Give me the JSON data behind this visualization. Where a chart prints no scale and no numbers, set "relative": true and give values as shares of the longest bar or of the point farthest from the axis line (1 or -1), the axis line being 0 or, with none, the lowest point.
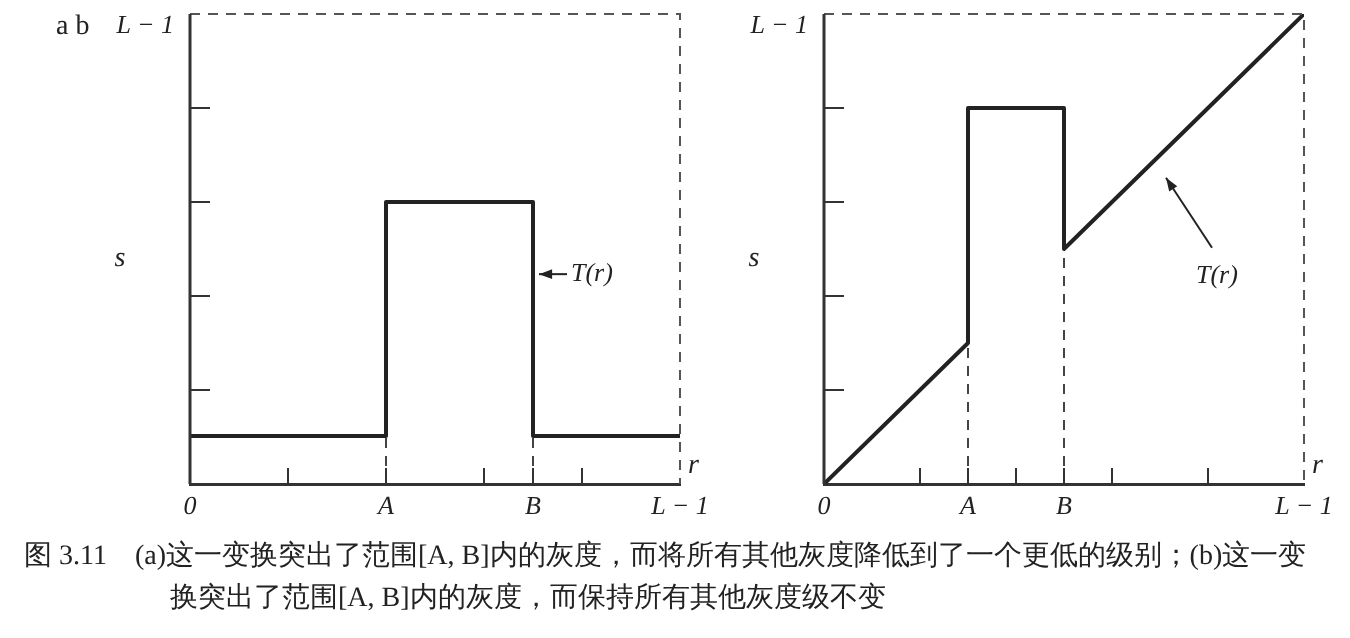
{
  "chart_data": [
    {
      "type": "line",
      "relative": true,
      "xlabel": "r",
      "ylabel": "s",
      "legend": false,
      "marker": "none",
      "categories": [
        "0",
        null,
        null,
        null,
        "A",
        null,
        null,
        "B",
        null,
        null,
        "L − 1"
      ],
      "series": [
        {
          "color": "#222222",
          "line_style": "solid",
          "x": [
            "0",
            "A",
            "A",
            "B",
            "B",
            "L − 1"
          ],
          "values": [
            0.17,
            0.17,
            1,
            1,
            0.17,
            0.17
          ]
        },
        {
          "color": "#444444",
          "line_style": "dashed",
          "x": [
            "A",
            "A"
          ],
          "values": [
            0,
            0.17
          ]
        },
        {
          "color": "#444444",
          "line_style": "dashed",
          "x": [
            "B",
            "B"
          ],
          "values": [
            0,
            0.17
          ]
        }
      ],
      "annotations": [
        "a b",
        "L − 1",
        "T(r)",
        "图 3.11　(a)这一变换突出了范围[A, B]内的灰度，而将所有其他灰度降低到了一个更低的级别；(b)这一变换突出了范围[A, B]内的灰度，而保持所有其他灰度级不变"
      ]
    },
    {
      "type": "line",
      "relative": true,
      "xlabel": "r",
      "ylabel": "s",
      "legend": false,
      "marker": "none",
      "categories": [
        "0",
        null,
        null,
        "A",
        null,
        "B",
        null,
        null,
        null,
        null,
        "L − 1"
      ],
      "series": [
        {
          "color": "#222222",
          "line_style": "solid",
          "x": [
            "0",
            "A",
            "A",
            "B",
            "B",
            "L − 1"
          ],
          "values": [
            0,
            0.3,
            0.8,
            0.8,
            0.5,
            1
          ]
        },
        {
          "color": "#444444",
          "line_style": "dashed",
          "x": [
            "A",
            "A"
          ],
          "values": [
            0,
            0.3
          ]
        },
        {
          "color": "#444444",
          "line_style": "dashed",
          "x": [
            "B",
            "B"
          ],
          "values": [
            0,
            0.5
          ]
        }
      ],
      "annotations": [
        "L − 1",
        "T(r)"
      ]
    }
  ]
}
